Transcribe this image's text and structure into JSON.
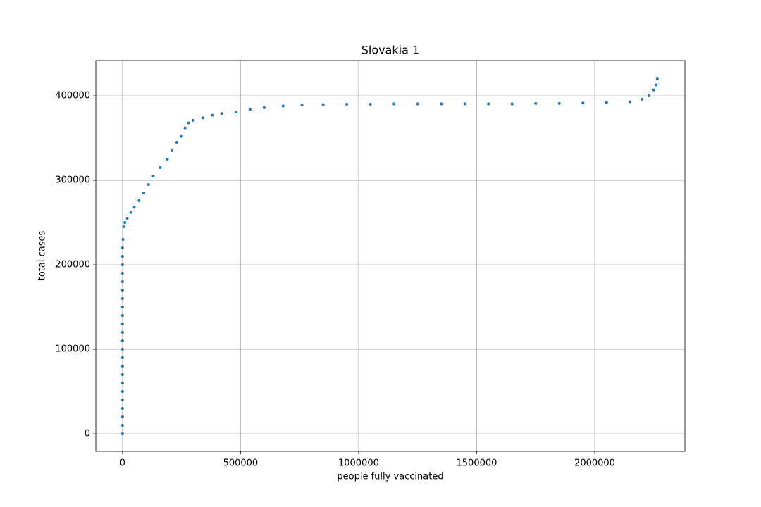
{
  "chart_data": {
    "type": "scatter",
    "title": "Slovakia 1",
    "x_label": "people fully vaccinated",
    "y_label": "total cases",
    "color": "#1f77b4",
    "grid": true,
    "xlim": [
      -113000,
      2382000
    ],
    "ylim": [
      -20800,
      441700
    ],
    "xticks": [
      0,
      500000,
      1000000,
      1500000,
      2000000
    ],
    "yticks": [
      0,
      100000,
      200000,
      300000,
      400000
    ],
    "x": [
      0,
      0,
      0,
      0,
      0,
      0,
      0,
      0,
      0,
      0,
      0,
      0,
      0,
      0,
      0,
      0,
      0,
      0,
      0,
      0,
      0,
      0,
      0,
      2000,
      5000,
      10000,
      20000,
      35000,
      50000,
      70000,
      90000,
      110000,
      130000,
      160000,
      190000,
      210000,
      230000,
      250000,
      265000,
      280000,
      300000,
      340000,
      380000,
      420000,
      480000,
      540000,
      600000,
      680000,
      760000,
      850000,
      950000,
      1050000,
      1150000,
      1250000,
      1350000,
      1450000,
      1550000,
      1650000,
      1750000,
      1850000,
      1950000,
      2050000,
      2150000,
      2200000,
      2230000,
      2250000,
      2260000,
      2265000
    ],
    "values": [
      0,
      10000,
      20000,
      30000,
      40000,
      50000,
      60000,
      70000,
      80000,
      90000,
      100000,
      110000,
      120000,
      130000,
      140000,
      150000,
      160000,
      170000,
      180000,
      190000,
      200000,
      210000,
      220000,
      230000,
      245000,
      250000,
      255000,
      262000,
      268000,
      276000,
      285000,
      295000,
      305000,
      315000,
      325000,
      335000,
      345000,
      352000,
      362000,
      368000,
      371000,
      374000,
      377000,
      379000,
      381000,
      384000,
      386000,
      388000,
      389000,
      389500,
      390000,
      390000,
      390500,
      390500,
      390500,
      390500,
      390500,
      390500,
      391000,
      391000,
      391500,
      392000,
      393000,
      396000,
      400000,
      407000,
      413000,
      420000
    ]
  }
}
